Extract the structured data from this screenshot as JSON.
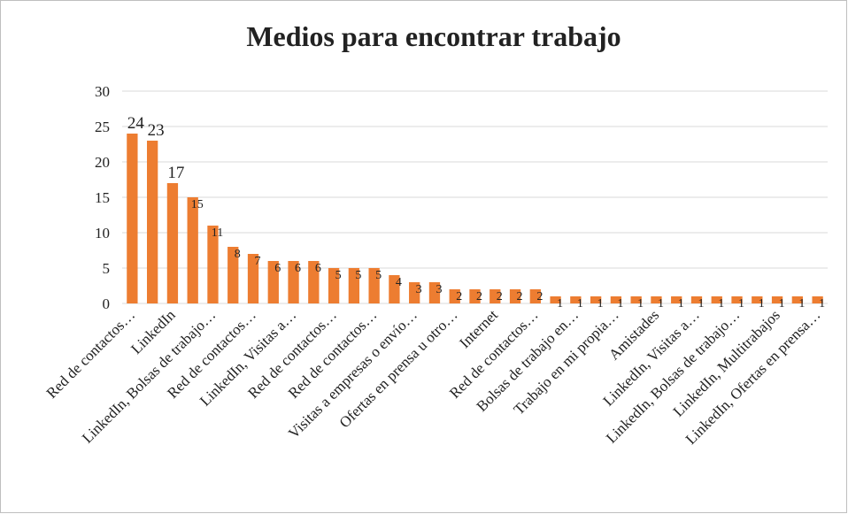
{
  "chart_data": {
    "type": "bar",
    "title": "Medios para encontrar trabajo",
    "categories": [
      "Red de contactos…",
      null,
      "LinkedIn",
      null,
      "LinkedIn, Bolsas de trabajo…",
      null,
      "Red de contactos…",
      null,
      "LinkedIn, Visitas a…",
      null,
      "Red de contactos…",
      null,
      "Red de contactos…",
      null,
      "Visitas a empresas o envío…",
      null,
      "Ofertas en prensa u otro…",
      null,
      "Internet",
      null,
      "Red de contactos…",
      null,
      "Bolsas de trabajo en…",
      null,
      "Trabajo en mi propia…",
      null,
      "Amistades",
      null,
      "LinkedIn, Visitas a…",
      null,
      "LinkedIn, Bolsas de trabajo…",
      null,
      "LinkedIn, Multitrabajos",
      null,
      "LinkedIn, Ofertas en prensa…"
    ],
    "values": [
      24,
      23,
      17,
      15,
      11,
      8,
      7,
      6,
      6,
      6,
      5,
      5,
      5,
      4,
      3,
      3,
      2,
      2,
      2,
      2,
      2,
      1,
      1,
      1,
      1,
      1,
      1,
      1,
      1,
      1,
      1,
      1,
      1,
      1,
      1
    ],
    "color": "#ed7d31",
    "ylim": [
      0,
      30
    ],
    "yticks": [
      0,
      5,
      10,
      15,
      20,
      25,
      30
    ],
    "grid": true
  }
}
